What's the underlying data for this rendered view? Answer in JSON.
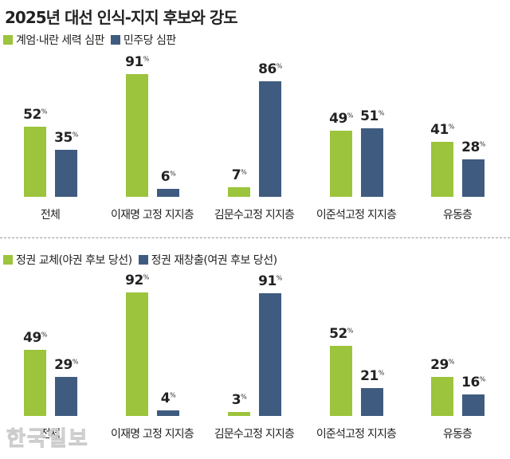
{
  "title": "2025년 대선 인식-지지 후보와 강도",
  "watermark": "한국일보",
  "colors": {
    "green": "#9cc43c",
    "navy": "#3f5b7f"
  },
  "chart_data": [
    {
      "type": "bar",
      "legend": [
        "계엄·내란 세력 심판",
        "민주당 심판"
      ],
      "categories": [
        "전체",
        "이재명 고정 지지층",
        "김문수고정 지지층",
        "이준석고정 지지층",
        "유동층"
      ],
      "series": [
        {
          "name": "계엄·내란 세력 심판",
          "values": [
            52,
            91,
            7,
            49,
            41
          ]
        },
        {
          "name": "민주당 심판",
          "values": [
            35,
            6,
            86,
            51,
            28
          ]
        }
      ],
      "unit": "%",
      "legend_position": "top-left",
      "grid": false
    },
    {
      "type": "bar",
      "legend": [
        "정권 교체(야권 후보 당선)",
        "정권 재창출(여권 후보 당선)"
      ],
      "categories": [
        "전체",
        "이재명 고정 지지층",
        "김문수고정 지지층",
        "이준석고정 지지층",
        "유동층"
      ],
      "series": [
        {
          "name": "정권 교체(야권 후보 당선)",
          "values": [
            49,
            92,
            3,
            52,
            29
          ]
        },
        {
          "name": "정권 재창출(여권 후보 당선)",
          "values": [
            29,
            4,
            91,
            21,
            16
          ]
        }
      ],
      "unit": "%",
      "legend_position": "top-left",
      "grid": false
    }
  ]
}
